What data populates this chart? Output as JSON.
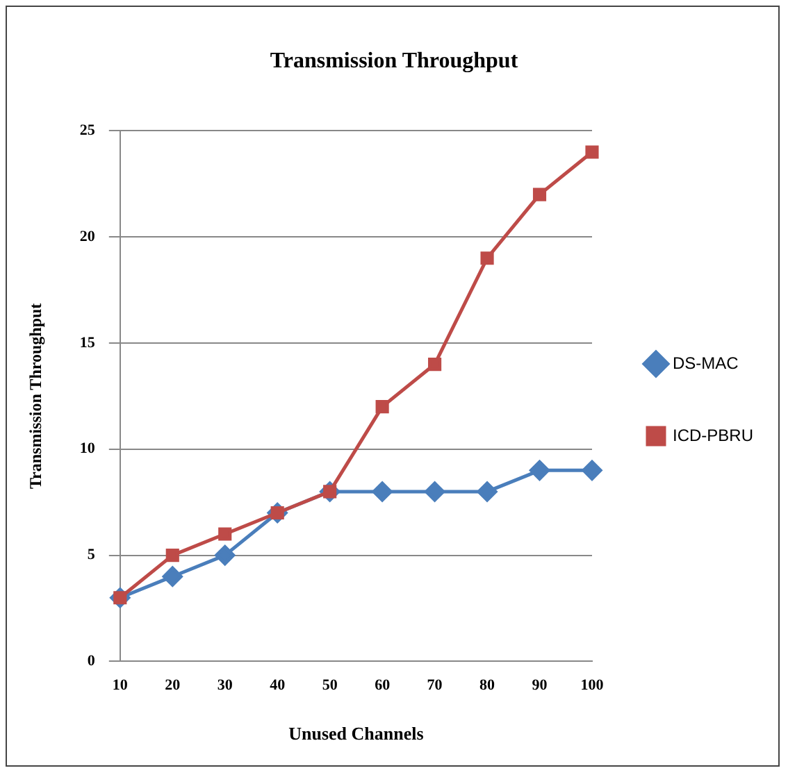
{
  "chart_data": {
    "type": "line",
    "title": "Transmission Throughput",
    "xlabel": "Unused Channels",
    "ylabel": "Transmission Throughput",
    "categories": [
      "10",
      "20",
      "30",
      "40",
      "50",
      "60",
      "70",
      "80",
      "90",
      "100"
    ],
    "series": [
      {
        "name": "DS-MAC",
        "color": "#4a7ebb",
        "marker": "diamond",
        "values": [
          3,
          4,
          5,
          7,
          8,
          8,
          8,
          8,
          9,
          9
        ]
      },
      {
        "name": "ICD-PBRU",
        "color": "#be4b48",
        "marker": "square",
        "values": [
          3,
          5,
          6,
          7,
          8,
          12,
          14,
          19,
          22,
          24
        ]
      }
    ],
    "ylim": [
      0,
      25
    ],
    "yticks": [
      0,
      5,
      10,
      15,
      20,
      25
    ],
    "grid": "y",
    "legend": "right",
    "line_style": "solid"
  }
}
